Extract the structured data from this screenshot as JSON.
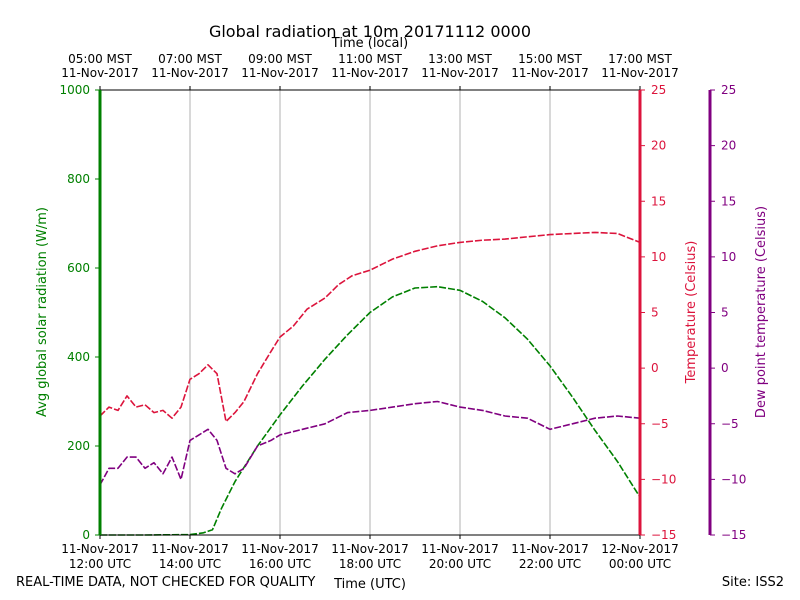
{
  "chart_data": {
    "type": "line",
    "title": "Global radiation at 10m 20171112 0000",
    "xlabel_top": "Time (local)",
    "xlabel_bottom": "Time (UTC)",
    "x_domain_hours_utc": [
      12,
      24
    ],
    "top_ticks": [
      {
        "hour": 12,
        "line1": "05:00 MST",
        "line2": "11-Nov-2017"
      },
      {
        "hour": 14,
        "line1": "07:00 MST",
        "line2": "11-Nov-2017"
      },
      {
        "hour": 16,
        "line1": "09:00 MST",
        "line2": "11-Nov-2017"
      },
      {
        "hour": 18,
        "line1": "11:00 MST",
        "line2": "11-Nov-2017"
      },
      {
        "hour": 20,
        "line1": "13:00 MST",
        "line2": "11-Nov-2017"
      },
      {
        "hour": 22,
        "line1": "15:00 MST",
        "line2": "11-Nov-2017"
      },
      {
        "hour": 24,
        "line1": "17:00 MST",
        "line2": "11-Nov-2017"
      }
    ],
    "bottom_ticks": [
      {
        "hour": 12,
        "line1": "11-Nov-2017",
        "line2": "12:00 UTC"
      },
      {
        "hour": 14,
        "line1": "11-Nov-2017",
        "line2": "14:00 UTC"
      },
      {
        "hour": 16,
        "line1": "11-Nov-2017",
        "line2": "16:00 UTC"
      },
      {
        "hour": 18,
        "line1": "11-Nov-2017",
        "line2": "18:00 UTC"
      },
      {
        "hour": 20,
        "line1": "11-Nov-2017",
        "line2": "20:00 UTC"
      },
      {
        "hour": 22,
        "line1": "11-Nov-2017",
        "line2": "22:00 UTC"
      },
      {
        "hour": 24,
        "line1": "12-Nov-2017",
        "line2": "00:00 UTC"
      }
    ],
    "axes": {
      "radiation": {
        "label": "Avg global solar radiation (W/m)",
        "ylim": [
          0,
          1000
        ],
        "ticks": [
          0,
          200,
          400,
          600,
          800,
          1000
        ],
        "color": "#008000"
      },
      "temperature": {
        "label": "Temperature (Celsius)",
        "ylim": [
          -15,
          25
        ],
        "ticks": [
          -15,
          -10,
          -5,
          0,
          5,
          10,
          15,
          20,
          25
        ],
        "color": "#dc143c"
      },
      "dewpoint": {
        "label": "Dew point temperature (Celsius)",
        "ylim": [
          -15,
          25
        ],
        "ticks": [
          -15,
          -10,
          -5,
          0,
          5,
          10,
          15,
          20,
          25
        ],
        "color": "#800080"
      }
    },
    "series": [
      {
        "name": "Global radiation",
        "axis": "radiation",
        "color": "#008000",
        "x": [
          12.0,
          13.0,
          14.0,
          14.3,
          14.5,
          14.7,
          15.0,
          15.5,
          16.0,
          16.5,
          17.0,
          17.5,
          18.0,
          18.5,
          19.0,
          19.5,
          20.0,
          20.5,
          21.0,
          21.5,
          22.0,
          22.5,
          23.0,
          23.5,
          24.0
        ],
        "values": [
          0,
          0,
          1,
          5,
          12,
          60,
          120,
          200,
          270,
          335,
          395,
          450,
          500,
          535,
          555,
          558,
          550,
          525,
          488,
          440,
          380,
          310,
          235,
          165,
          85
        ]
      },
      {
        "name": "Temperature",
        "axis": "temperature",
        "color": "#dc143c",
        "x": [
          12.0,
          12.2,
          12.4,
          12.6,
          12.8,
          13.0,
          13.2,
          13.4,
          13.6,
          13.8,
          14.0,
          14.2,
          14.4,
          14.6,
          14.8,
          15.0,
          15.2,
          15.5,
          15.8,
          16.0,
          16.3,
          16.6,
          17.0,
          17.3,
          17.6,
          18.0,
          18.5,
          19.0,
          19.5,
          20.0,
          20.5,
          21.0,
          21.5,
          22.0,
          22.5,
          23.0,
          23.5,
          24.0
        ],
        "values": [
          -4.3,
          -3.5,
          -3.8,
          -2.5,
          -3.5,
          -3.3,
          -4.0,
          -3.8,
          -4.5,
          -3.5,
          -1.0,
          -0.5,
          0.3,
          -0.5,
          -4.8,
          -4.0,
          -3.0,
          -0.5,
          1.5,
          2.8,
          3.8,
          5.3,
          6.3,
          7.5,
          8.3,
          8.8,
          9.8,
          10.5,
          11.0,
          11.3,
          11.5,
          11.6,
          11.8,
          12.0,
          12.1,
          12.2,
          12.1,
          11.3
        ]
      },
      {
        "name": "Dew point temperature",
        "axis": "dewpoint",
        "color": "#800080",
        "x": [
          12.0,
          12.2,
          12.4,
          12.6,
          12.8,
          13.0,
          13.2,
          13.4,
          13.6,
          13.8,
          14.0,
          14.2,
          14.4,
          14.6,
          14.8,
          15.0,
          15.2,
          15.5,
          15.8,
          16.0,
          16.5,
          17.0,
          17.5,
          18.0,
          18.5,
          19.0,
          19.5,
          20.0,
          20.5,
          21.0,
          21.5,
          22.0,
          22.5,
          23.0,
          23.5,
          24.0
        ],
        "values": [
          -10.5,
          -9.0,
          -9.0,
          -8.0,
          -8.0,
          -9.0,
          -8.5,
          -9.5,
          -8.0,
          -10.0,
          -6.5,
          -6.0,
          -5.5,
          -6.5,
          -9.0,
          -9.5,
          -9.0,
          -7.0,
          -6.5,
          -6.0,
          -5.5,
          -5.0,
          -4.0,
          -3.8,
          -3.5,
          -3.2,
          -3.0,
          -3.5,
          -3.8,
          -4.3,
          -4.5,
          -5.5,
          -5.0,
          -4.5,
          -4.3,
          -4.5
        ]
      }
    ]
  },
  "footer": {
    "left_note": "REAL-TIME DATA, NOT CHECKED FOR QUALITY",
    "site": "Site: ISS2"
  }
}
